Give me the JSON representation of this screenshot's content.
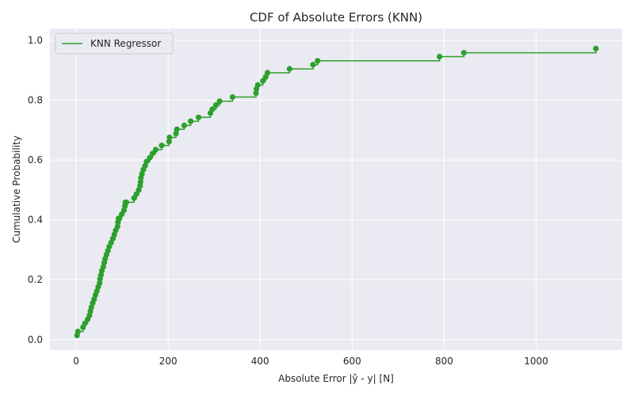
{
  "chart_data": {
    "type": "line",
    "title": "CDF of Absolute Errors (KNN)",
    "xlabel": "Absolute Error |ŷ - y| [N]",
    "ylabel": "Cumulative Probability",
    "xlim": [
      -57,
      1187
    ],
    "ylim": [
      -0.035,
      1.04
    ],
    "xticks": [
      0,
      200,
      400,
      600,
      800,
      1000
    ],
    "yticks": [
      0.0,
      0.2,
      0.4,
      0.6,
      0.8,
      1.0
    ],
    "grid": true,
    "legend_position": "top-left",
    "colors": {
      "series": "#2ca02c",
      "plot_bg": "#eaeaf2",
      "grid": "#ffffff"
    },
    "series": [
      {
        "name": "KNN Regressor",
        "x": [
          2,
          4,
          15,
          19,
          25,
          29,
          31,
          33,
          36,
          39,
          42,
          45,
          48,
          51,
          52,
          54,
          56,
          59,
          61,
          63,
          66,
          69,
          72,
          76,
          80,
          83,
          86,
          90,
          91,
          92,
          94,
          99,
          104,
          106,
          107,
          109,
          126,
          131,
          136,
          139,
          140,
          141,
          143,
          146,
          150,
          153,
          160,
          166,
          173,
          186,
          202,
          203,
          217,
          219,
          235,
          249,
          266,
          292,
          296,
          304,
          312,
          340,
          391,
          392,
          395,
          406,
          412,
          416,
          464,
          515,
          525,
          790,
          843,
          1130
        ],
        "y": [
          0.014,
          0.027,
          0.041,
          0.054,
          0.068,
          0.081,
          0.095,
          0.108,
          0.122,
          0.135,
          0.149,
          0.162,
          0.176,
          0.189,
          0.203,
          0.216,
          0.23,
          0.243,
          0.257,
          0.27,
          0.284,
          0.297,
          0.311,
          0.324,
          0.338,
          0.351,
          0.365,
          0.378,
          0.392,
          0.405,
          0.405,
          0.419,
          0.432,
          0.446,
          0.459,
          0.459,
          0.473,
          0.486,
          0.5,
          0.514,
          0.527,
          0.541,
          0.554,
          0.568,
          0.581,
          0.595,
          0.608,
          0.622,
          0.635,
          0.649,
          0.662,
          0.676,
          0.689,
          0.703,
          0.716,
          0.73,
          0.743,
          0.757,
          0.77,
          0.784,
          0.797,
          0.811,
          0.824,
          0.838,
          0.851,
          0.865,
          0.878,
          0.892,
          0.905,
          0.919,
          0.932,
          0.946,
          0.959,
          0.973
        ]
      }
    ]
  }
}
